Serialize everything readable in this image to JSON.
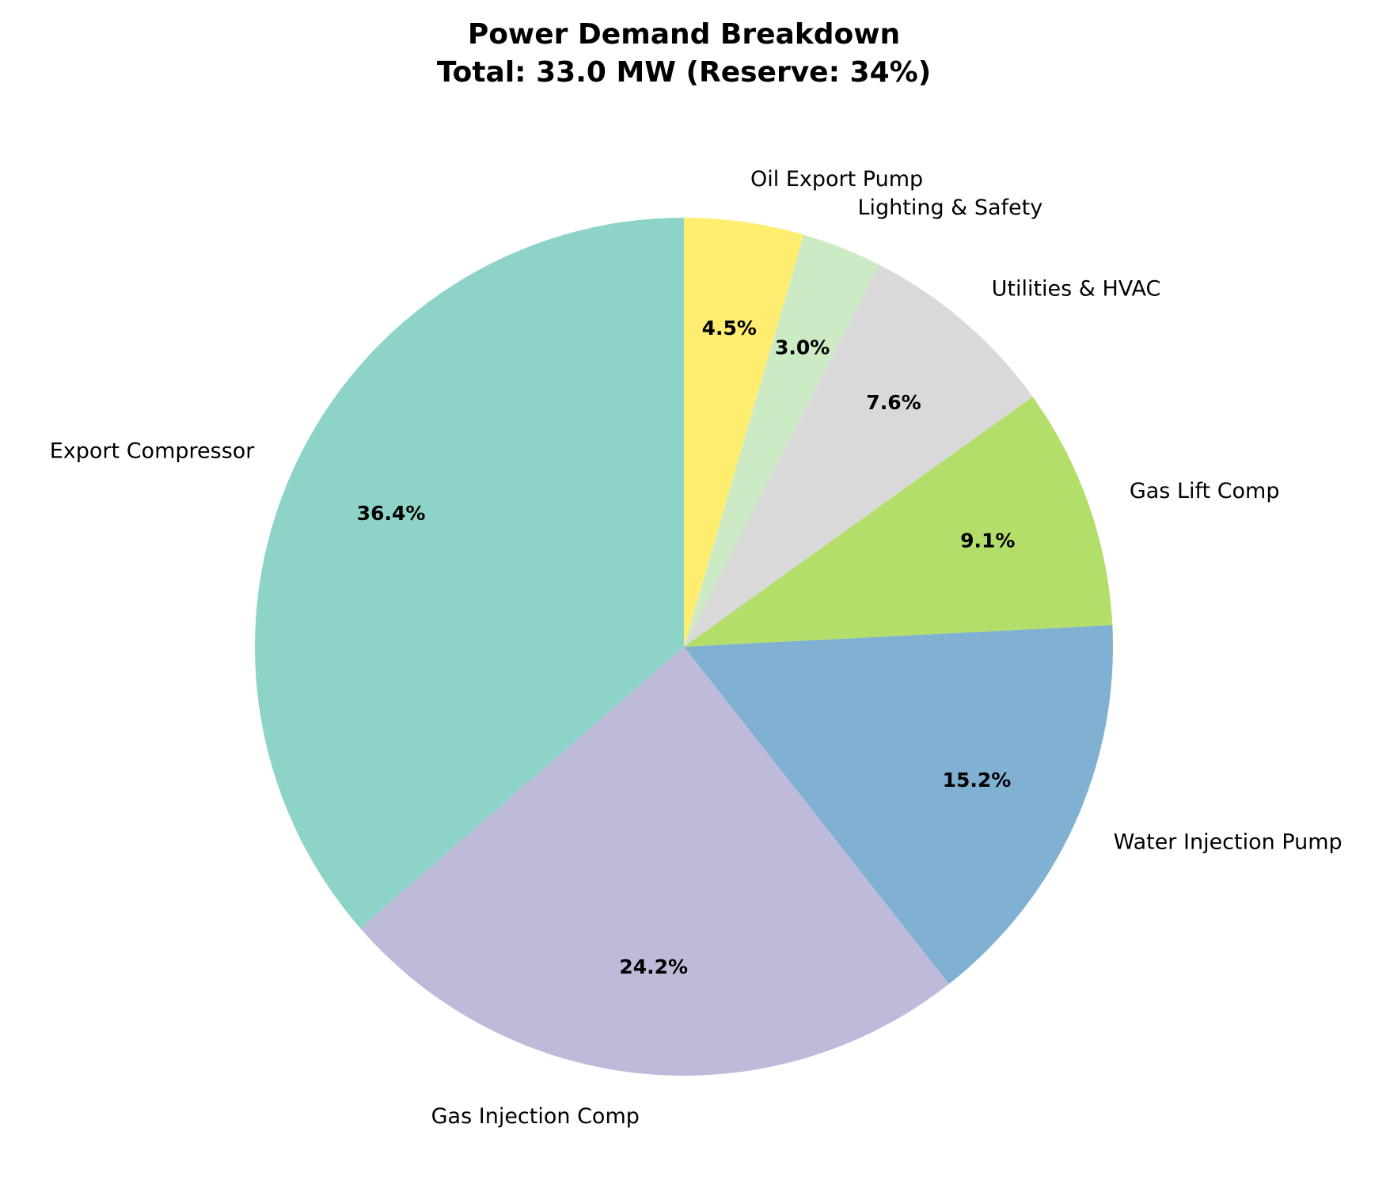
{
  "chart_data": {
    "type": "pie",
    "title_line1": "Power Demand Breakdown",
    "title_line2": "Total: 33.0 MW (Reserve: 34%)",
    "start_angle_deg": 90,
    "direction": "counterclockwise",
    "slices": [
      {
        "label": "Export Compressor",
        "percent": 36.4,
        "pct_label": "36.4%",
        "color": "#8dd3c7"
      },
      {
        "label": "Gas Injection Comp",
        "percent": 24.2,
        "pct_label": "24.2%",
        "color": "#bebada"
      },
      {
        "label": "Water Injection Pump",
        "percent": 15.2,
        "pct_label": "15.2%",
        "color": "#80b1d3"
      },
      {
        "label": "Gas Lift Comp",
        "percent": 9.1,
        "pct_label": "9.1%",
        "color": "#b3de69"
      },
      {
        "label": "Utilities & HVAC",
        "percent": 7.6,
        "pct_label": "7.6%",
        "color": "#d9d9d9"
      },
      {
        "label": "Lighting & Safety",
        "percent": 3.0,
        "pct_label": "3.0%",
        "color": "#ccebc5"
      },
      {
        "label": "Oil Export Pump",
        "percent": 4.5,
        "pct_label": "4.5%",
        "color": "#ffed6f"
      }
    ]
  }
}
